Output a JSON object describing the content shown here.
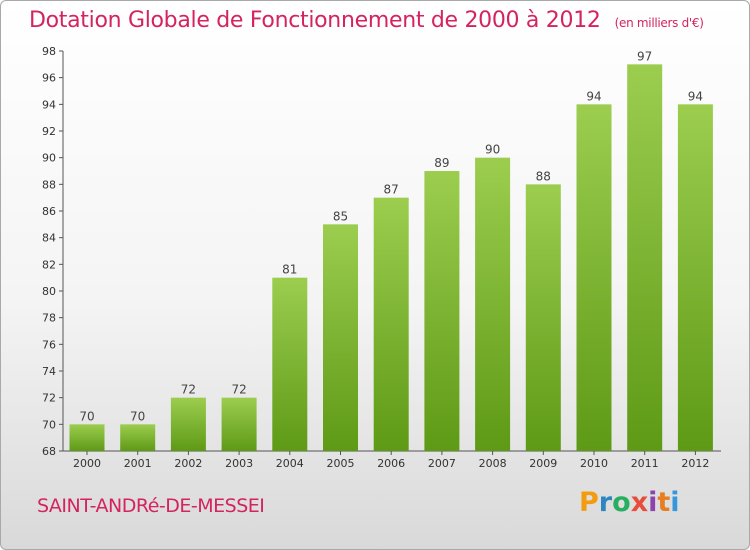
{
  "chart_data": {
    "type": "bar",
    "title": "Dotation Globale de Fonctionnement de 2000 à 2012",
    "unit_label": "(en milliers d'€)",
    "categories": [
      "2000",
      "2001",
      "2002",
      "2003",
      "2004",
      "2005",
      "2006",
      "2007",
      "2008",
      "2009",
      "2010",
      "2011",
      "2012"
    ],
    "values": [
      70,
      70,
      72,
      72,
      81,
      85,
      87,
      89,
      90,
      88,
      94,
      97,
      94
    ],
    "ylim": [
      68,
      98
    ],
    "yticks": [
      68,
      70,
      72,
      74,
      76,
      78,
      80,
      82,
      84,
      86,
      88,
      90,
      92,
      94,
      96,
      98
    ],
    "grid": false,
    "bar_color_top": "#9ccd4f",
    "bar_color_bottom": "#5e9a16"
  },
  "footer": {
    "town_name": "SAINT-ANDRé-DE-MESSEI",
    "logo_letters": [
      "P",
      "r",
      "o",
      "x",
      "i",
      "t",
      "i"
    ],
    "logo_colors": [
      "#f39c12",
      "#2e86c1",
      "#27ae60",
      "#e74c3c",
      "#8e44ad",
      "#e67e22",
      "#3498db"
    ]
  },
  "colors": {
    "accent": "#d4235f"
  }
}
